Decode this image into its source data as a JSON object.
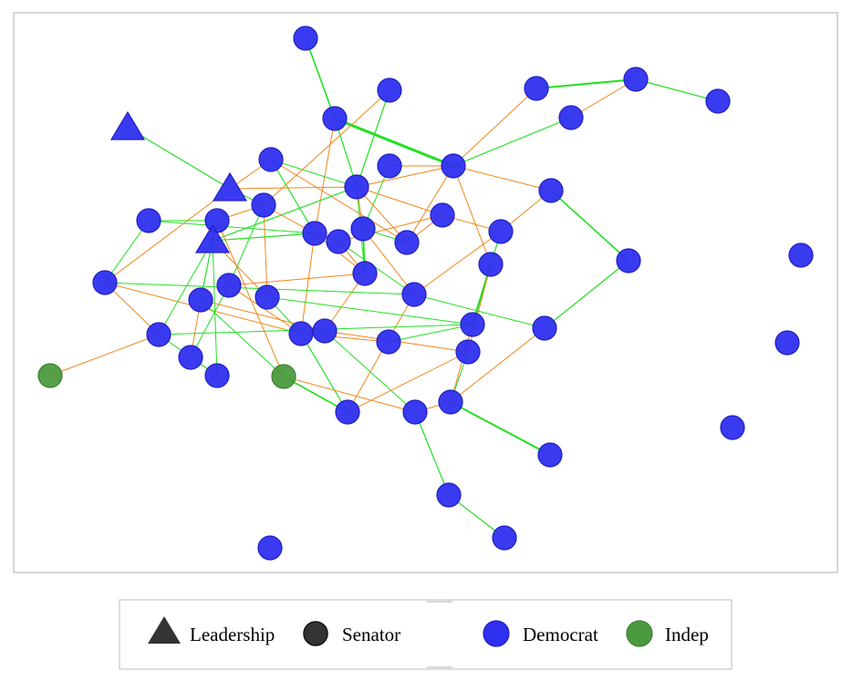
{
  "legend": {
    "shape_items": [
      {
        "label": "Leadership",
        "shape": "triangle-icon"
      },
      {
        "label": "Senator",
        "shape": "circle-icon"
      }
    ],
    "color_items": [
      {
        "label": "Democrat",
        "color": "#2f2ff0"
      },
      {
        "label": "Indep",
        "color": "#4c9a3f"
      }
    ]
  },
  "colors": {
    "democrat": "#2f2ff0",
    "independent": "#4c9a3f",
    "edge_green": "#22e022",
    "edge_orange": "#f0861a",
    "frame": "#c8c8c8",
    "legend_symbol": "#333333"
  },
  "network": {
    "node_count": 55,
    "leadership_count": 3,
    "independent_count": 2
  }
}
